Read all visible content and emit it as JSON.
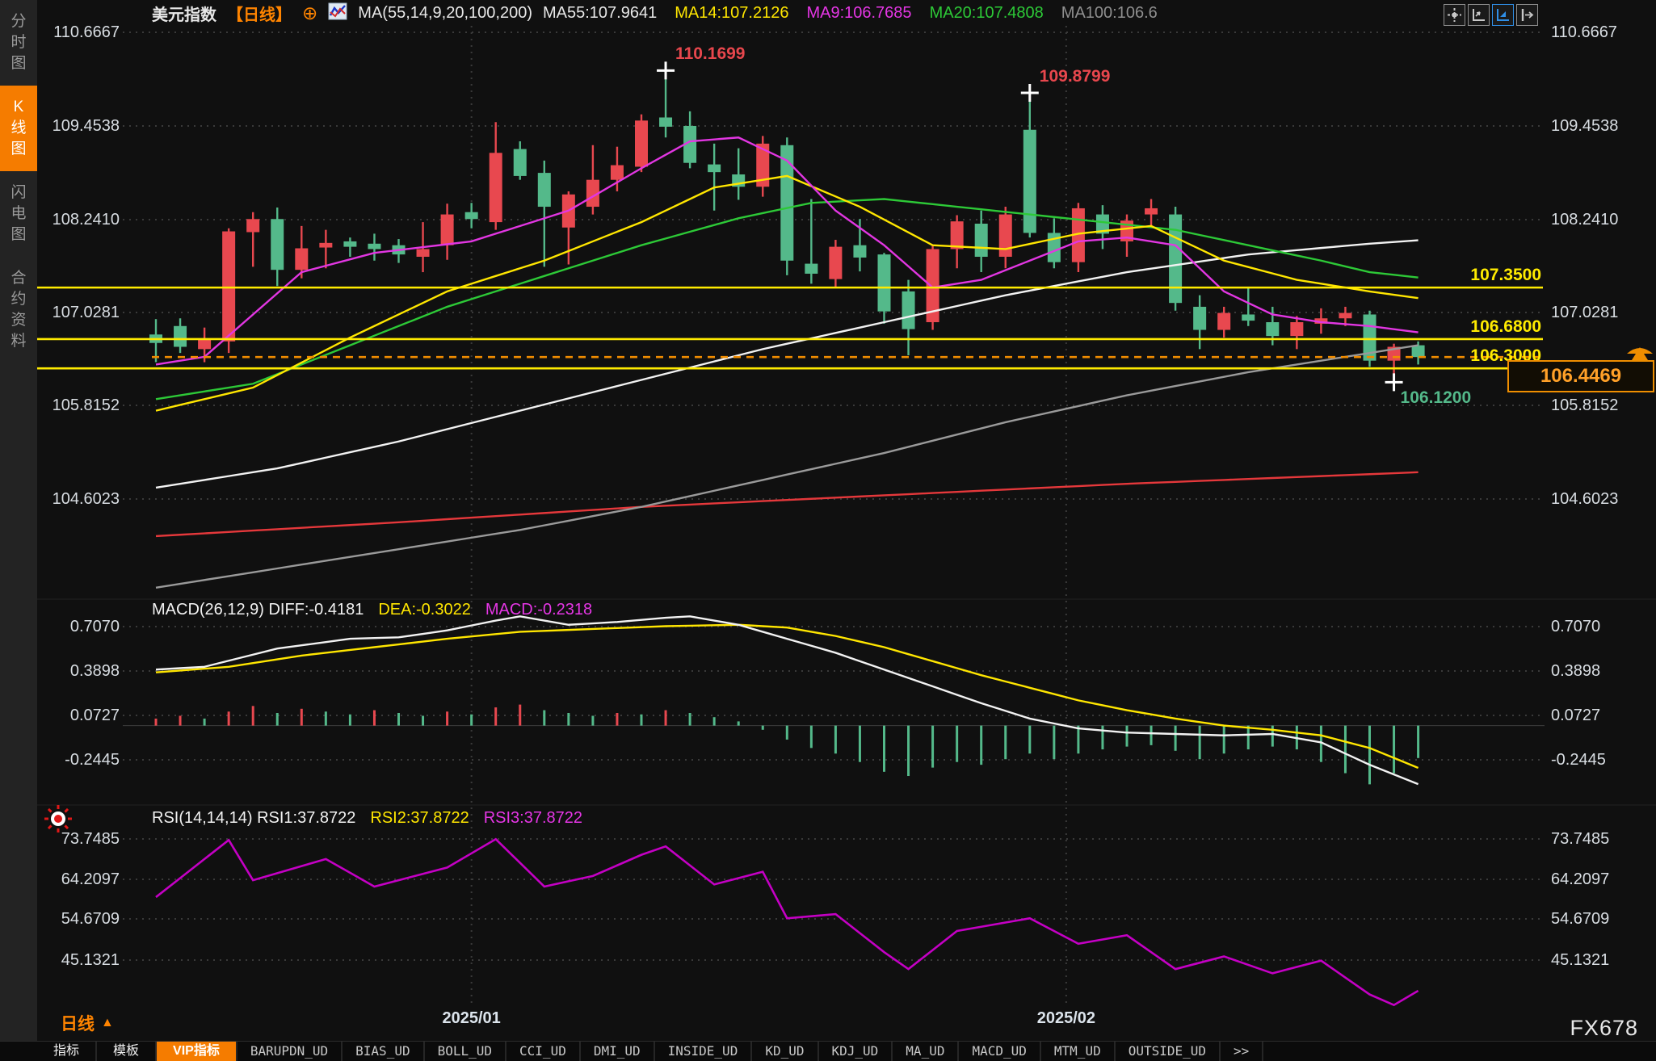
{
  "app": {
    "watermark": "FX678"
  },
  "sidebar": {
    "items": [
      {
        "label": "分时图",
        "active": false
      },
      {
        "label": "K线图",
        "active": true
      },
      {
        "label": "闪电图",
        "active": false
      },
      {
        "label": "合约资料",
        "active": false
      }
    ]
  },
  "header": {
    "symbol": "美元指数",
    "period_tag": "【日线】",
    "plus_icon": "⊕",
    "ma_params": "MA(55,14,9,20,100,200)",
    "ma_values": [
      {
        "label": "MA55:107.9641",
        "color": "#e8e8e8"
      },
      {
        "label": "MA14:107.2126",
        "color": "#ffe600"
      },
      {
        "label": "MA9:106.7685",
        "color": "#e536e5"
      },
      {
        "label": "MA20:107.4808",
        "color": "#2dc937"
      },
      {
        "label": "MA100:106.6",
        "color": "#8f8f8f"
      }
    ],
    "toolbar": [
      {
        "name": "move-cross-icon",
        "active": false
      },
      {
        "name": "axis-scale-icon",
        "active": false
      },
      {
        "name": "axis-zoom-icon",
        "active": true
      },
      {
        "name": "collapse-panel-icon",
        "active": false
      }
    ]
  },
  "bottom": {
    "period_label": "日线",
    "dates": [
      {
        "label": "2025/01",
        "index": 13
      },
      {
        "label": "2025/02",
        "index": 37.5
      }
    ],
    "tabs": [
      {
        "label": "指标",
        "cn": true,
        "active": false
      },
      {
        "label": "模板",
        "cn": true,
        "active": false
      },
      {
        "label": "VIP指标",
        "cn": true,
        "active": true
      },
      {
        "label": "BARUPDN_UD"
      },
      {
        "label": "BIAS_UD"
      },
      {
        "label": "BOLL_UD"
      },
      {
        "label": "CCI_UD"
      },
      {
        "label": "DMI_UD"
      },
      {
        "label": "INSIDE_UD"
      },
      {
        "label": "KD_UD"
      },
      {
        "label": "KDJ_UD"
      },
      {
        "label": "MA_UD"
      },
      {
        "label": "MACD_UD"
      },
      {
        "label": "MTM_UD"
      },
      {
        "label": "OUTSIDE_UD"
      },
      {
        "label": ">>"
      }
    ]
  },
  "colors": {
    "up": "#e8484f",
    "down": "#54b98a",
    "ma9": "#e236e2",
    "ma14": "#ffe600",
    "ma20": "#2dc937",
    "ma55": "#f2f2f2",
    "ma100": "#9a9a9a",
    "ma200": "#e5383b",
    "hline": "#ffeb00",
    "dashed": "#f08c00",
    "tag": "#ffa028",
    "grid": "#3a3a3a",
    "axis_text": "#d9dee3",
    "rsi": "#c400c4",
    "macd_diff": "#f2f2f2",
    "macd_dea": "#ffe600",
    "annot_high": "#e8474d",
    "annot_low": "#54b98a"
  },
  "chart_data": [
    {
      "type": "candlestick",
      "title": "美元指数 日线",
      "y_ticks": [
        110.6667,
        109.4538,
        108.241,
        107.0281,
        105.8152,
        104.6023
      ],
      "x_dates": [
        {
          "label": "2025/01",
          "index": 13
        },
        {
          "label": "2025/02",
          "index": 37.5
        }
      ],
      "legend": [
        "MA55:107.9641",
        "MA14:107.2126",
        "MA9:106.7685",
        "MA20:107.4808",
        "MA100:106.6"
      ],
      "candles_ohlc": [
        [
          106.74,
          106.94,
          106.38,
          106.63
        ],
        [
          106.85,
          106.95,
          106.5,
          106.58
        ],
        [
          106.55,
          106.83,
          106.38,
          106.68
        ],
        [
          106.65,
          108.12,
          106.5,
          108.08
        ],
        [
          108.07,
          108.33,
          107.62,
          108.24
        ],
        [
          108.24,
          108.39,
          107.37,
          107.58
        ],
        [
          107.58,
          108.15,
          107.47,
          107.86
        ],
        [
          107.87,
          108.1,
          107.6,
          107.93
        ],
        [
          107.95,
          108.0,
          107.75,
          107.88
        ],
        [
          107.92,
          108.05,
          107.7,
          107.85
        ],
        [
          107.9,
          107.98,
          107.67,
          107.78
        ],
        [
          107.75,
          108.2,
          107.55,
          107.85
        ],
        [
          107.9,
          108.44,
          107.71,
          108.3
        ],
        [
          108.33,
          108.45,
          108.12,
          108.24
        ],
        [
          108.2,
          109.5,
          108.1,
          109.1
        ],
        [
          109.15,
          109.25,
          108.75,
          108.8
        ],
        [
          108.84,
          109.0,
          107.62,
          108.4
        ],
        [
          108.13,
          108.6,
          107.65,
          108.56
        ],
        [
          108.4,
          109.2,
          108.3,
          108.75
        ],
        [
          108.75,
          109.18,
          108.6,
          108.94
        ],
        [
          108.92,
          109.6,
          108.85,
          109.52
        ],
        [
          109.56,
          110.17,
          109.3,
          109.44
        ],
        [
          109.45,
          109.64,
          108.9,
          108.97
        ],
        [
          108.95,
          109.22,
          108.35,
          108.85
        ],
        [
          108.82,
          109.16,
          108.49,
          108.66
        ],
        [
          108.66,
          109.32,
          108.53,
          109.22
        ],
        [
          109.2,
          109.3,
          107.51,
          107.7
        ],
        [
          107.66,
          108.5,
          107.4,
          107.53
        ],
        [
          107.46,
          107.97,
          107.36,
          107.88
        ],
        [
          107.9,
          108.24,
          107.56,
          107.74
        ],
        [
          107.78,
          107.8,
          106.88,
          107.04
        ],
        [
          107.3,
          107.45,
          106.47,
          106.81
        ],
        [
          106.9,
          107.9,
          106.8,
          107.85
        ],
        [
          107.85,
          108.29,
          107.6,
          108.21
        ],
        [
          108.18,
          108.35,
          107.55,
          107.75
        ],
        [
          107.75,
          108.4,
          107.6,
          108.3
        ],
        [
          109.4,
          109.88,
          108.0,
          108.06
        ],
        [
          108.06,
          108.25,
          107.6,
          107.68
        ],
        [
          107.68,
          108.45,
          107.55,
          108.38
        ],
        [
          108.3,
          108.42,
          107.85,
          108.05
        ],
        [
          107.95,
          108.3,
          107.75,
          108.22
        ],
        [
          108.3,
          108.5,
          108.15,
          108.38
        ],
        [
          108.3,
          108.4,
          107.05,
          107.15
        ],
        [
          107.1,
          107.25,
          106.55,
          106.8
        ],
        [
          106.8,
          107.1,
          106.7,
          107.02
        ],
        [
          107.0,
          107.35,
          106.85,
          106.92
        ],
        [
          106.9,
          107.1,
          106.6,
          106.72
        ],
        [
          106.72,
          106.98,
          106.55,
          106.9
        ],
        [
          106.88,
          107.08,
          106.75,
          106.95
        ],
        [
          106.95,
          107.1,
          106.85,
          107.02
        ],
        [
          107.0,
          107.05,
          106.32,
          106.4
        ],
        [
          106.4,
          106.62,
          106.12,
          106.58
        ],
        [
          106.6,
          106.65,
          106.35,
          106.4469
        ]
      ],
      "overlays": {
        "ma9": [
          [
            0,
            106.35
          ],
          [
            2,
            106.45
          ],
          [
            4,
            107.0
          ],
          [
            6,
            107.55
          ],
          [
            9,
            107.8
          ],
          [
            13,
            107.95
          ],
          [
            17,
            108.35
          ],
          [
            20,
            108.9
          ],
          [
            22,
            109.25
          ],
          [
            24,
            109.3
          ],
          [
            26,
            109.0
          ],
          [
            28,
            108.35
          ],
          [
            30,
            107.9
          ],
          [
            32,
            107.35
          ],
          [
            34,
            107.45
          ],
          [
            36,
            107.7
          ],
          [
            38,
            107.95
          ],
          [
            40,
            108.0
          ],
          [
            42,
            107.9
          ],
          [
            44,
            107.3
          ],
          [
            46,
            107.0
          ],
          [
            48,
            106.9
          ],
          [
            50,
            106.85
          ],
          [
            52,
            106.7685
          ]
        ],
        "ma14": [
          [
            0,
            105.75
          ],
          [
            4,
            106.05
          ],
          [
            8,
            106.7
          ],
          [
            12,
            107.3
          ],
          [
            16,
            107.7
          ],
          [
            20,
            108.2
          ],
          [
            23,
            108.65
          ],
          [
            26,
            108.8
          ],
          [
            29,
            108.4
          ],
          [
            32,
            107.9
          ],
          [
            35,
            107.85
          ],
          [
            38,
            108.05
          ],
          [
            41,
            108.15
          ],
          [
            44,
            107.7
          ],
          [
            47,
            107.45
          ],
          [
            50,
            107.3
          ],
          [
            52,
            107.2126
          ]
        ],
        "ma20": [
          [
            0,
            105.9
          ],
          [
            4,
            106.1
          ],
          [
            8,
            106.6
          ],
          [
            12,
            107.1
          ],
          [
            16,
            107.5
          ],
          [
            20,
            107.9
          ],
          [
            24,
            108.25
          ],
          [
            27,
            108.45
          ],
          [
            30,
            108.5
          ],
          [
            33,
            108.4
          ],
          [
            36,
            108.3
          ],
          [
            39,
            108.2
          ],
          [
            42,
            108.1
          ],
          [
            45,
            107.9
          ],
          [
            48,
            107.7
          ],
          [
            50,
            107.55
          ],
          [
            52,
            107.4808
          ]
        ],
        "ma55": [
          [
            0,
            104.75
          ],
          [
            5,
            105.0
          ],
          [
            10,
            105.35
          ],
          [
            15,
            105.75
          ],
          [
            20,
            106.15
          ],
          [
            25,
            106.55
          ],
          [
            30,
            106.9
          ],
          [
            35,
            107.25
          ],
          [
            40,
            107.55
          ],
          [
            45,
            107.78
          ],
          [
            50,
            107.92
          ],
          [
            52,
            107.9641
          ]
        ],
        "ma100": [
          [
            0,
            103.45
          ],
          [
            5,
            103.7
          ],
          [
            10,
            103.95
          ],
          [
            15,
            104.2
          ],
          [
            20,
            104.5
          ],
          [
            25,
            104.85
          ],
          [
            30,
            105.2
          ],
          [
            35,
            105.6
          ],
          [
            40,
            105.95
          ],
          [
            45,
            106.25
          ],
          [
            50,
            106.5
          ],
          [
            52,
            106.6
          ]
        ],
        "ma200": [
          [
            0,
            104.12
          ],
          [
            10,
            104.3
          ],
          [
            20,
            104.5
          ],
          [
            30,
            104.65
          ],
          [
            40,
            104.8
          ],
          [
            52,
            104.95
          ]
        ]
      },
      "hlines": [
        {
          "value": 107.35,
          "label": "107.3500"
        },
        {
          "value": 106.68,
          "label": "106.6800"
        },
        {
          "value": 106.3,
          "label": "106.3000"
        }
      ],
      "current_price_line": {
        "value": 106.4469,
        "label": "106.4469"
      },
      "annotations": [
        {
          "text": "110.1699",
          "index": 21,
          "price": 110.1699,
          "kind": "high"
        },
        {
          "text": "109.8799",
          "index": 36,
          "price": 109.8799,
          "kind": "high"
        },
        {
          "text": "106.1200",
          "index": 51,
          "price": 106.12,
          "kind": "low"
        }
      ]
    },
    {
      "type": "macd",
      "header": {
        "params": "MACD(26,12,9) DIFF:-0.4181",
        "dea": "DEA:-0.3022",
        "macd": "MACD:-0.2318"
      },
      "diff_value": -0.4181,
      "dea_value": -0.3022,
      "macd_value": -0.2318,
      "y_ticks": [
        0.707,
        0.3898,
        0.0727,
        -0.2445
      ],
      "diff_line": [
        [
          0,
          0.4
        ],
        [
          2,
          0.42
        ],
        [
          5,
          0.55
        ],
        [
          8,
          0.62
        ],
        [
          10,
          0.63
        ],
        [
          12,
          0.68
        ],
        [
          14,
          0.75
        ],
        [
          15,
          0.78
        ],
        [
          17,
          0.72
        ],
        [
          19,
          0.74
        ],
        [
          21,
          0.77
        ],
        [
          22,
          0.78
        ],
        [
          24,
          0.72
        ],
        [
          26,
          0.62
        ],
        [
          28,
          0.52
        ],
        [
          30,
          0.4
        ],
        [
          32,
          0.28
        ],
        [
          34,
          0.16
        ],
        [
          36,
          0.05
        ],
        [
          38,
          -0.02
        ],
        [
          40,
          -0.05
        ],
        [
          42,
          -0.06
        ],
        [
          44,
          -0.07
        ],
        [
          46,
          -0.06
        ],
        [
          48,
          -0.12
        ],
        [
          50,
          -0.28
        ],
        [
          52,
          -0.4181
        ]
      ],
      "dea_line": [
        [
          0,
          0.38
        ],
        [
          3,
          0.42
        ],
        [
          6,
          0.5
        ],
        [
          9,
          0.56
        ],
        [
          12,
          0.62
        ],
        [
          15,
          0.67
        ],
        [
          18,
          0.69
        ],
        [
          21,
          0.71
        ],
        [
          24,
          0.72
        ],
        [
          26,
          0.7
        ],
        [
          28,
          0.64
        ],
        [
          30,
          0.56
        ],
        [
          32,
          0.46
        ],
        [
          34,
          0.36
        ],
        [
          36,
          0.27
        ],
        [
          38,
          0.18
        ],
        [
          40,
          0.11
        ],
        [
          42,
          0.05
        ],
        [
          44,
          0.0
        ],
        [
          46,
          -0.03
        ],
        [
          48,
          -0.07
        ],
        [
          50,
          -0.16
        ],
        [
          52,
          -0.3022
        ]
      ],
      "histogram": [
        0.05,
        0.07,
        0.05,
        0.1,
        0.14,
        0.09,
        0.12,
        0.1,
        0.08,
        0.11,
        0.09,
        0.07,
        0.1,
        0.08,
        0.13,
        0.15,
        0.11,
        0.09,
        0.07,
        0.09,
        0.08,
        0.11,
        0.09,
        0.06,
        0.03,
        -0.03,
        -0.1,
        -0.16,
        -0.2,
        -0.26,
        -0.33,
        -0.36,
        -0.3,
        -0.26,
        -0.28,
        -0.24,
        -0.2,
        -0.24,
        -0.2,
        -0.17,
        -0.15,
        -0.14,
        -0.18,
        -0.24,
        -0.2,
        -0.17,
        -0.15,
        -0.17,
        -0.26,
        -0.34,
        -0.42,
        -0.34,
        -0.2318
      ]
    },
    {
      "type": "rsi",
      "header": {
        "params": "RSI(14,14,14) RSI1:37.8722",
        "rsi2": "RSI2:37.8722",
        "rsi3": "RSI3:37.8722"
      },
      "rsi1_value": 37.8722,
      "rsi2_value": 37.8722,
      "rsi3_value": 37.8722,
      "y_ticks": [
        73.7485,
        64.2097,
        54.6709,
        45.1321
      ],
      "line": [
        [
          0,
          60
        ],
        [
          3,
          73.5
        ],
        [
          4,
          64
        ],
        [
          7,
          69
        ],
        [
          9,
          62.5
        ],
        [
          12,
          67
        ],
        [
          14,
          73.7
        ],
        [
          16,
          62.5
        ],
        [
          18,
          65
        ],
        [
          20,
          70
        ],
        [
          21,
          72
        ],
        [
          23,
          63
        ],
        [
          25,
          66
        ],
        [
          26,
          55
        ],
        [
          28,
          56
        ],
        [
          30,
          47
        ],
        [
          31,
          43
        ],
        [
          33,
          52
        ],
        [
          35,
          54
        ],
        [
          36,
          55
        ],
        [
          38,
          49
        ],
        [
          40,
          51
        ],
        [
          42,
          43
        ],
        [
          44,
          46
        ],
        [
          46,
          42
        ],
        [
          48,
          45
        ],
        [
          50,
          37
        ],
        [
          51,
          34.5
        ],
        [
          52,
          37.8722
        ]
      ]
    }
  ]
}
